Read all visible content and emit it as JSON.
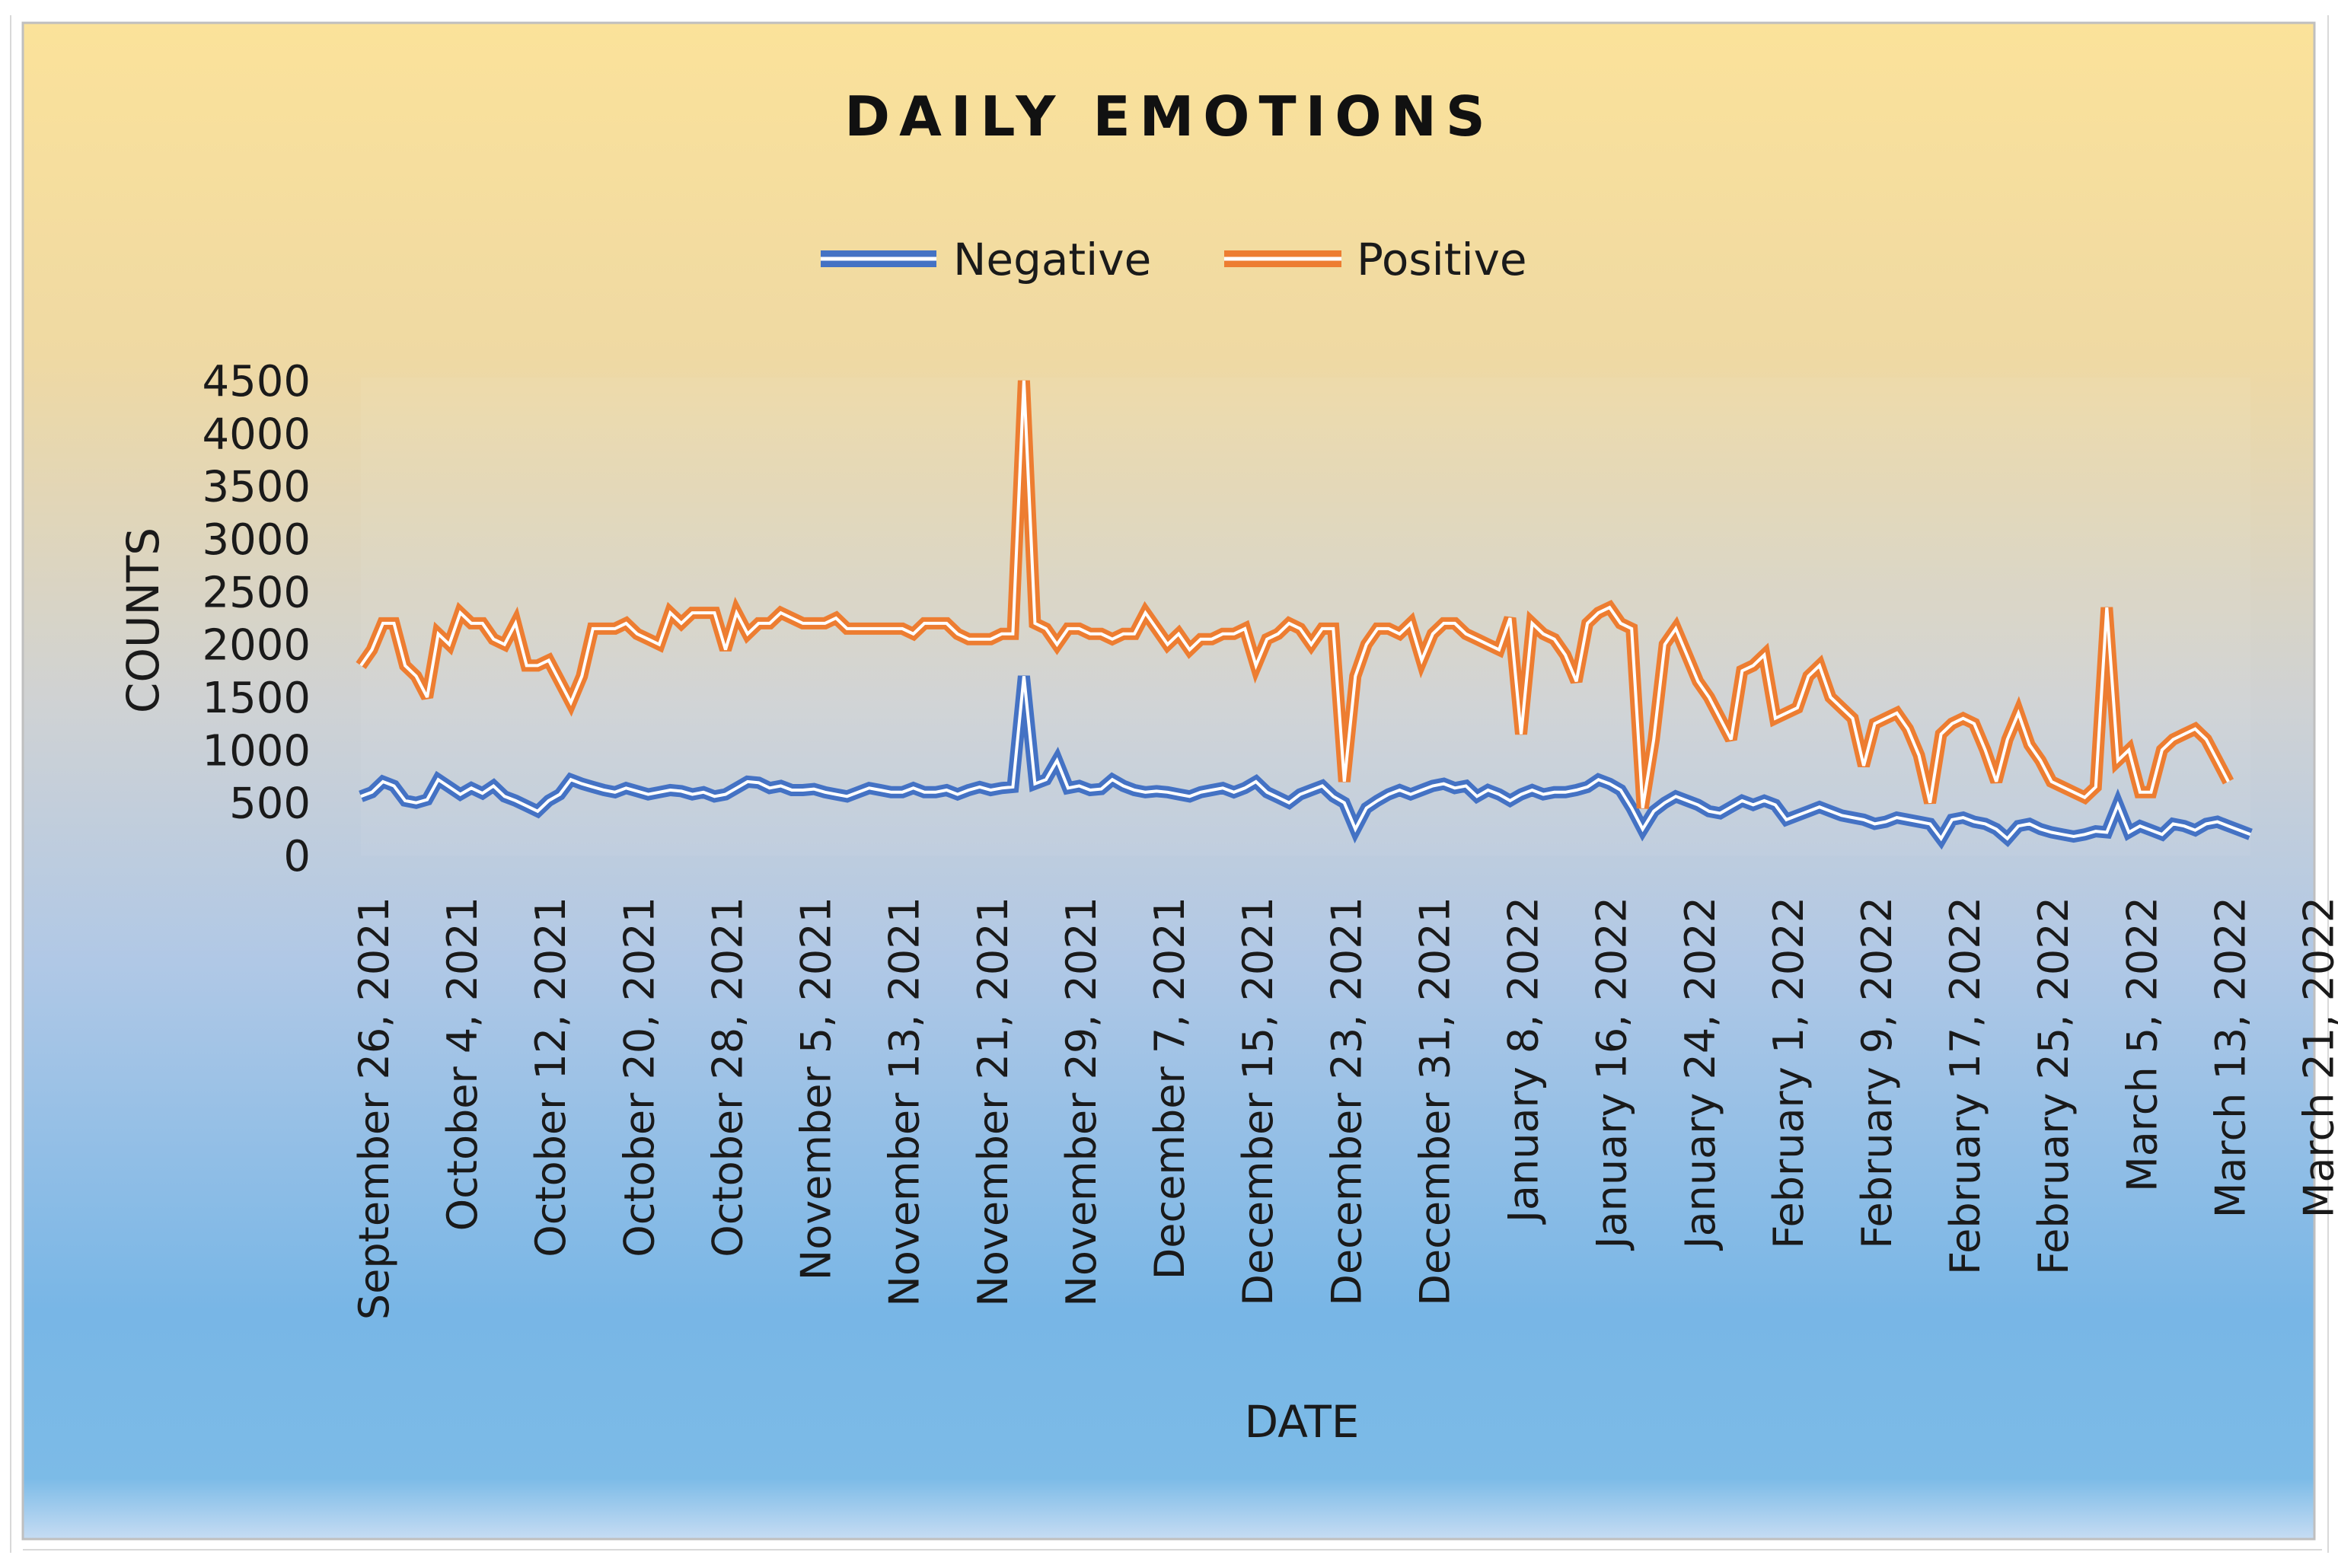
{
  "chart_data": {
    "type": "line",
    "title": "DAILY EMOTIONS",
    "xlabel": "DATE",
    "ylabel": "COUNTS",
    "ylim": [
      0,
      4500
    ],
    "yticks": [
      "0",
      "500",
      "1000",
      "1500",
      "2000",
      "2500",
      "3000",
      "3500",
      "4000",
      "4500"
    ],
    "legend": {
      "placement": "top-center",
      "entries": [
        "Negative",
        "Positive"
      ]
    },
    "xtick_labels": [
      "September 26, 2021",
      "October 4, 2021",
      "October 12, 2021",
      "October 20, 2021",
      "October 28, 2021",
      "November 5, 2021",
      "November 13, 2021",
      "November 21, 2021",
      "November 29, 2021",
      "December 7, 2021",
      "December 15, 2021",
      "December 23, 2021",
      "December 31, 2021",
      "January 8, 2022",
      "January 16, 2022",
      "January 24, 2022",
      "February 1, 2022",
      "February 9, 2022",
      "February 17, 2022",
      "February 25, 2022",
      "March 5, 2022",
      "March 13, 2022",
      "March 21, 2022"
    ],
    "series": [
      {
        "name": "Negative",
        "color": "#4472c4",
        "values": [
          560,
          600,
          700,
          660,
          520,
          500,
          530,
          720,
          650,
          580,
          640,
          590,
          660,
          560,
          520,
          470,
          420,
          520,
          580,
          720,
          680,
          650,
          620,
          600,
          640,
          610,
          580,
          600,
          620,
          610,
          580,
          600,
          560,
          580,
          640,
          700,
          690,
          640,
          660,
          620,
          620,
          630,
          600,
          580,
          560,
          600,
          640,
          620,
          600,
          600,
          640,
          600,
          600,
          620,
          580,
          620,
          650,
          620,
          640,
          650,
          1700,
          680,
          720,
          900,
          640,
          660,
          620,
          630,
          720,
          660,
          620,
          600,
          610,
          600,
          580,
          560,
          600,
          620,
          640,
          600,
          640,
          700,
          600,
          550,
          500,
          580,
          620,
          660,
          560,
          500,
          250,
          450,
          520,
          580,
          620,
          580,
          620,
          660,
          680,
          640,
          660,
          560,
          620,
          580,
          520,
          580,
          620,
          580,
          600,
          600,
          620,
          650,
          720,
          680,
          620,
          450,
          250,
          420,
          500,
          560,
          520,
          480,
          420,
          400,
          460,
          520,
          480,
          520,
          480,
          340,
          380,
          420,
          460,
          420,
          380,
          360,
          340,
          300,
          320,
          360,
          340,
          320,
          300,
          160,
          340,
          360,
          320,
          300,
          250,
          160,
          280,
          300,
          250,
          220,
          200,
          180,
          200,
          230,
          220,
          480,
          220,
          280,
          240,
          200,
          300,
          280,
          240,
          300,
          320,
          280,
          240,
          200
        ]
      },
      {
        "name": "Positive",
        "color": "#ed7d31",
        "values": [
          1800,
          1950,
          2200,
          2200,
          1800,
          1700,
          1500,
          2100,
          2000,
          2300,
          2200,
          2200,
          2050,
          2000,
          2200,
          1800,
          1800,
          1850,
          1650,
          1450,
          1700,
          2150,
          2150,
          2150,
          2200,
          2100,
          2050,
          2000,
          2300,
          2200,
          2300,
          2300,
          2300,
          1950,
          2300,
          2100,
          2200,
          2200,
          2300,
          2250,
          2200,
          2200,
          2200,
          2250,
          2150,
          2150,
          2150,
          2150,
          2150,
          2150,
          2100,
          2200,
          2200,
          2200,
          2100,
          2050,
          2050,
          2050,
          2100,
          2100,
          4500,
          2200,
          2150,
          2000,
          2150,
          2150,
          2100,
          2100,
          2050,
          2100,
          2100,
          2300,
          2150,
          2000,
          2100,
          1950,
          2050,
          2050,
          2100,
          2100,
          2150,
          1800,
          2050,
          2100,
          2200,
          2150,
          2000,
          2150,
          2150,
          700,
          1700,
          2000,
          2150,
          2150,
          2100,
          2200,
          1850,
          2100,
          2200,
          2200,
          2100,
          2050,
          2000,
          1950,
          2250,
          1150,
          2200,
          2100,
          2050,
          1900,
          1650,
          2200,
          2300,
          2350,
          2200,
          2150,
          450,
          1100,
          2000,
          2150,
          1900,
          1650,
          1500,
          1300,
          1100,
          1750,
          1800,
          1900,
          1300,
          1350,
          1400,
          1700,
          1800,
          1500,
          1400,
          1300,
          850,
          1250,
          1300,
          1350,
          1200,
          950,
          500,
          1150,
          1250,
          1300,
          1250,
          1000,
          700,
          1100,
          1350,
          1050,
          900,
          700,
          650,
          600,
          550,
          650,
          2350,
          900,
          1000,
          600,
          600,
          1000,
          1100,
          1150,
          1200,
          1100,
          900,
          700
        ]
      }
    ]
  }
}
